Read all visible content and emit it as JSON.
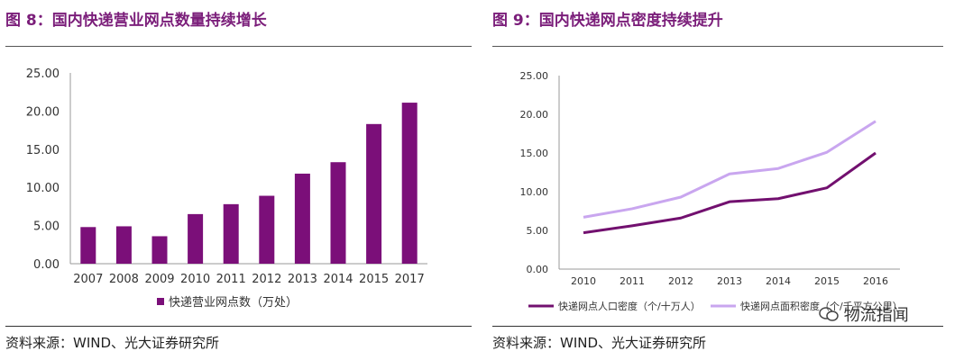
{
  "left": {
    "title": "图 8：国内快递营业网点数量持续增长",
    "source": "资料来源：WIND、光大证券研究所"
  },
  "right": {
    "title": "图 9：国内快递网点密度持续提升",
    "source": "资料来源：WIND、光大证券研究所"
  },
  "watermark": "物流指闻",
  "colors": {
    "bar": "#7b0f79",
    "line1": "#72106f",
    "line2": "#c9a6ef",
    "title": "#7b1e7a"
  },
  "chart_data": [
    {
      "type": "bar",
      "categories": [
        "2007",
        "2008",
        "2009",
        "2010",
        "2011",
        "2012",
        "2013",
        "2014",
        "2015",
        "2017"
      ],
      "series": [
        {
          "name": "快递营业网点数（万处）",
          "values": [
            4.8,
            4.9,
            3.6,
            6.5,
            7.8,
            8.9,
            11.8,
            13.3,
            18.3,
            21.1
          ]
        }
      ],
      "yticks": [
        "0.00",
        "5.00",
        "10.00",
        "15.00",
        "20.00",
        "25.00"
      ],
      "ylim": [
        0,
        25
      ],
      "legend": "bottom"
    },
    {
      "type": "line",
      "x": [
        "2010",
        "2011",
        "2012",
        "2013",
        "2014",
        "2015",
        "2016"
      ],
      "series": [
        {
          "name": "快递网点人口密度（个/十万人）",
          "values": [
            4.7,
            5.6,
            6.6,
            8.7,
            9.1,
            10.5,
            15.0
          ]
        },
        {
          "name": "快递网点面积密度（个/千平方公里）",
          "values": [
            6.7,
            7.8,
            9.3,
            12.3,
            13.0,
            15.1,
            19.1
          ]
        }
      ],
      "yticks": [
        "0.00",
        "5.00",
        "10.00",
        "15.00",
        "20.00",
        "25.00"
      ],
      "ylim": [
        0,
        25
      ],
      "legend": "bottom"
    }
  ]
}
